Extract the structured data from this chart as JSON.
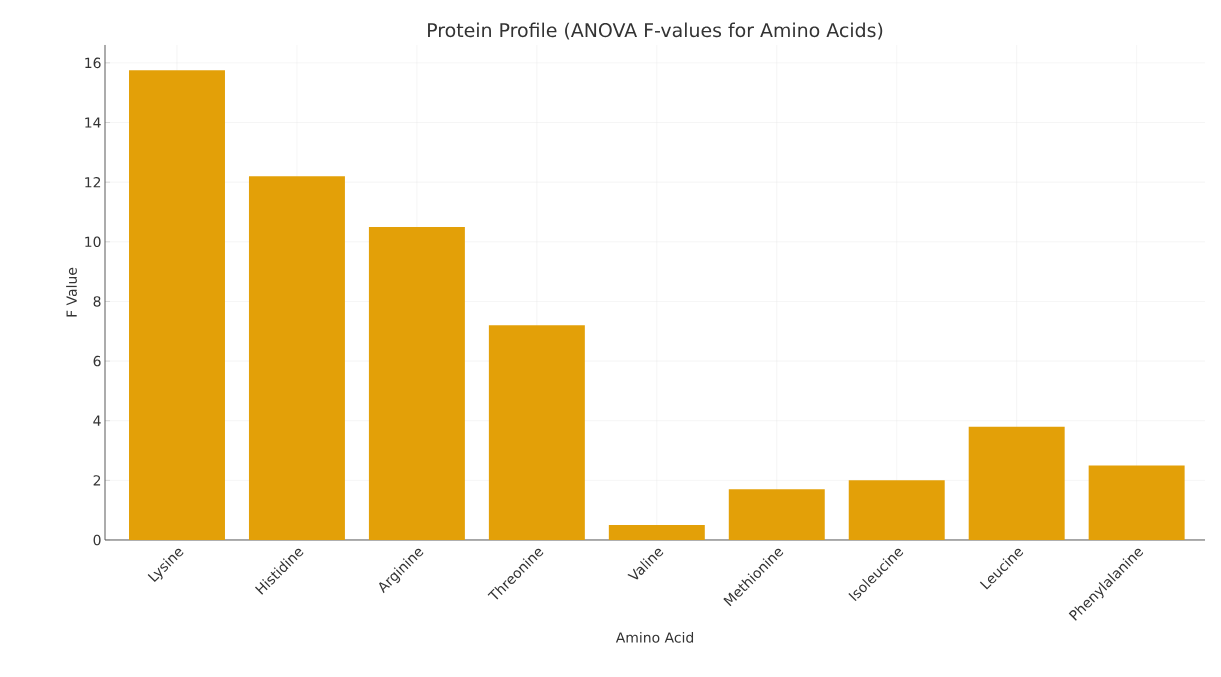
{
  "chart_data": {
    "type": "bar",
    "title": "Protein Profile (ANOVA F-values for Amino Acids)",
    "xlabel": "Amino Acid",
    "ylabel": "F Value",
    "categories": [
      "Lysine",
      "Histidine",
      "Arginine",
      "Threonine",
      "Valine",
      "Methionine",
      "Isoleucine",
      "Leucine",
      "Phenylalanine"
    ],
    "values": [
      15.75,
      12.2,
      10.5,
      7.2,
      0.5,
      1.7,
      2.0,
      3.8,
      2.5
    ],
    "color": "#e3a008",
    "ylim": [
      0,
      16.6
    ],
    "yticks": [
      0,
      2,
      4,
      6,
      8,
      10,
      12,
      14,
      16
    ],
    "grid": true
  }
}
